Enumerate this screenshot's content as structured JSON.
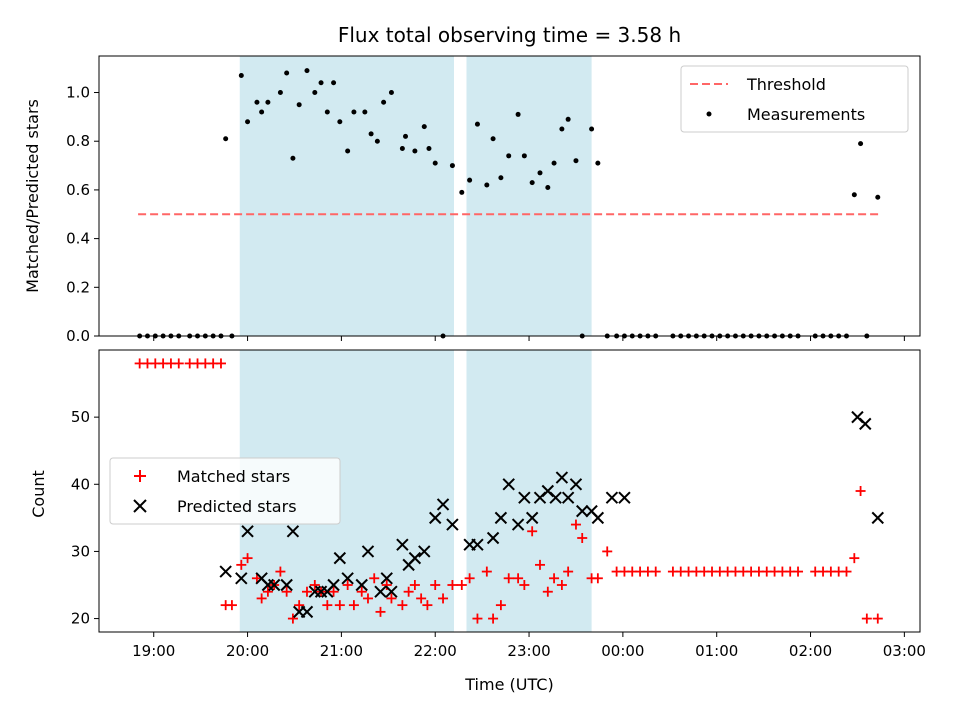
{
  "chart_data": [
    {
      "type": "scatter",
      "title": "Flux total observing time = 3.58 h",
      "xlabel": "",
      "ylabel": "Matched/Predicted stars",
      "x_unit": "hours (UTC)",
      "xlim": [
        "18:25",
        "03:10"
      ],
      "ylim": [
        0,
        1.15
      ],
      "yticks": [
        "0.0",
        "0.2",
        "0.4",
        "0.6",
        "0.8",
        "1.0"
      ],
      "xticks": [
        "19:00",
        "20:00",
        "21:00",
        "22:00",
        "23:00",
        "00:00",
        "01:00",
        "02:00",
        "03:00"
      ],
      "shaded_intervals": [
        [
          "19:55",
          "22:12"
        ],
        [
          "22:20",
          "23:40"
        ]
      ],
      "shade_color": "#add8e6",
      "legend_position": "upper right",
      "series": [
        {
          "name": "Threshold",
          "style": "dashed-line",
          "color": "#ff6666",
          "x": [
            "18:50",
            "02:45"
          ],
          "y": [
            0.5,
            0.5
          ]
        },
        {
          "name": "Measurements",
          "style": "dot",
          "color": "#000000",
          "x": [
            "18:51",
            "18:56",
            "19:01",
            "19:06",
            "19:11",
            "19:16",
            "19:23",
            "19:28",
            "19:33",
            "19:38",
            "19:43",
            "19:50",
            "19:46",
            "19:56",
            "20:00",
            "20:06",
            "20:09",
            "20:13",
            "20:21",
            "20:25",
            "20:29",
            "20:33",
            "20:38",
            "20:43",
            "20:47",
            "20:51",
            "20:55",
            "20:59",
            "21:04",
            "21:08",
            "21:15",
            "21:19",
            "21:23",
            "21:27",
            "21:32",
            "21:39",
            "21:41",
            "21:47",
            "21:53",
            "21:56",
            "22:00",
            "22:05",
            "22:11",
            "22:17",
            "22:22",
            "22:27",
            "22:33",
            "22:37",
            "22:42",
            "22:47",
            "22:53",
            "22:57",
            "23:02",
            "23:07",
            "23:12",
            "23:16",
            "23:21",
            "23:25",
            "23:30",
            "23:34",
            "23:40",
            "23:44",
            "23:50",
            "23:56",
            "00:01",
            "00:06",
            "00:11",
            "00:16",
            "00:21",
            "00:32",
            "00:37",
            "00:42",
            "00:47",
            "00:52",
            "00:57",
            "01:02",
            "01:07",
            "01:12",
            "01:17",
            "01:22",
            "01:27",
            "01:32",
            "01:37",
            "01:42",
            "01:47",
            "01:52",
            "02:03",
            "02:08",
            "02:13",
            "02:18",
            "02:23",
            "02:28",
            "02:32",
            "02:36",
            "02:43"
          ],
          "y": [
            0.0,
            0.0,
            0.0,
            0.0,
            0.0,
            0.0,
            0.0,
            0.0,
            0.0,
            0.0,
            0.0,
            0.0,
            0.81,
            1.07,
            0.88,
            0.96,
            0.92,
            0.96,
            1.0,
            1.08,
            0.73,
            0.95,
            1.09,
            1.0,
            1.04,
            0.92,
            1.04,
            0.88,
            0.76,
            0.92,
            0.92,
            0.83,
            0.8,
            0.96,
            1.0,
            0.77,
            0.82,
            0.76,
            0.86,
            0.77,
            0.71,
            0.0,
            0.7,
            0.59,
            0.64,
            0.87,
            0.62,
            0.81,
            0.65,
            0.74,
            0.91,
            0.74,
            0.63,
            0.67,
            0.61,
            0.71,
            0.85,
            0.89,
            0.72,
            0.0,
            0.85,
            0.71,
            0.0,
            0.0,
            0.0,
            0.0,
            0.0,
            0.0,
            0.0,
            0.0,
            0.0,
            0.0,
            0.0,
            0.0,
            0.0,
            0.0,
            0.0,
            0.0,
            0.0,
            0.0,
            0.0,
            0.0,
            0.0,
            0.0,
            0.0,
            0.0,
            0.0,
            0.0,
            0.0,
            0.0,
            0.0,
            0.58,
            0.79,
            0.0,
            0.57
          ]
        }
      ]
    },
    {
      "type": "scatter",
      "title": "",
      "xlabel": "Time (UTC)",
      "ylabel": "Count",
      "x_unit": "hours (UTC)",
      "xlim": [
        "18:25",
        "03:10"
      ],
      "ylim": [
        18,
        60
      ],
      "yticks": [
        "20",
        "30",
        "40",
        "50"
      ],
      "xticks": [
        "19:00",
        "20:00",
        "21:00",
        "22:00",
        "23:00",
        "00:00",
        "01:00",
        "02:00",
        "03:00"
      ],
      "shaded_intervals": [
        [
          "19:55",
          "22:12"
        ],
        [
          "22:20",
          "23:40"
        ]
      ],
      "shade_color": "#add8e6",
      "legend_position": "center left",
      "series": [
        {
          "name": "Matched stars",
          "style": "plus",
          "color": "#ff0000",
          "x": [
            "18:51",
            "18:56",
            "19:01",
            "19:06",
            "19:11",
            "19:16",
            "19:23",
            "19:28",
            "19:33",
            "19:38",
            "19:43",
            "19:46",
            "19:50",
            "19:56",
            "20:00",
            "20:06",
            "20:09",
            "20:13",
            "20:17",
            "20:21",
            "20:25",
            "20:29",
            "20:33",
            "20:38",
            "20:43",
            "20:47",
            "20:51",
            "20:55",
            "20:59",
            "21:04",
            "21:08",
            "21:13",
            "21:17",
            "21:21",
            "21:25",
            "21:29",
            "21:32",
            "21:39",
            "21:43",
            "21:47",
            "21:51",
            "21:55",
            "22:00",
            "22:05",
            "22:11",
            "22:17",
            "22:22",
            "22:27",
            "22:33",
            "22:37",
            "22:42",
            "22:47",
            "22:53",
            "22:57",
            "23:02",
            "23:07",
            "23:12",
            "23:16",
            "23:21",
            "23:25",
            "23:30",
            "23:34",
            "23:40",
            "23:44",
            "23:50",
            "23:56",
            "00:01",
            "00:06",
            "00:11",
            "00:16",
            "00:21",
            "00:32",
            "00:37",
            "00:42",
            "00:47",
            "00:52",
            "00:57",
            "01:02",
            "01:07",
            "01:12",
            "01:17",
            "01:22",
            "01:27",
            "01:32",
            "01:37",
            "01:42",
            "01:47",
            "01:52",
            "02:03",
            "02:08",
            "02:13",
            "02:18",
            "02:23",
            "02:28",
            "02:32",
            "02:36",
            "02:43"
          ],
          "y": [
            58,
            58,
            58,
            58,
            58,
            58,
            58,
            58,
            58,
            58,
            58,
            22,
            22,
            28,
            29,
            26,
            23,
            24,
            25,
            27,
            24,
            20,
            22,
            24,
            25,
            24,
            22,
            24,
            22,
            25,
            22,
            24,
            23,
            26,
            21,
            25,
            23,
            22,
            24,
            25,
            23,
            22,
            25,
            23,
            25,
            25,
            26,
            20,
            27,
            20,
            22,
            26,
            26,
            25,
            33,
            28,
            24,
            26,
            25,
            27,
            34,
            32,
            26,
            26,
            30,
            27,
            27,
            27,
            27,
            27,
            27,
            27,
            27,
            27,
            27,
            27,
            27,
            27,
            27,
            27,
            27,
            27,
            27,
            27,
            27,
            27,
            27,
            27,
            27,
            27,
            27,
            27,
            27,
            29,
            39,
            20,
            20
          ]
        },
        {
          "name": "Predicted stars",
          "style": "x",
          "color": "#000000",
          "x": [
            "19:46",
            "19:56",
            "20:00",
            "20:09",
            "20:13",
            "20:17",
            "20:25",
            "20:29",
            "20:33",
            "20:38",
            "20:43",
            "20:47",
            "20:51",
            "20:55",
            "20:59",
            "21:04",
            "21:13",
            "21:17",
            "21:25",
            "21:29",
            "21:32",
            "21:39",
            "21:43",
            "21:47",
            "21:53",
            "22:00",
            "22:05",
            "22:11",
            "22:22",
            "22:27",
            "22:37",
            "22:42",
            "22:47",
            "22:53",
            "22:57",
            "23:02",
            "23:07",
            "23:12",
            "23:17",
            "23:21",
            "23:25",
            "23:30",
            "23:34",
            "23:40",
            "23:44",
            "23:53",
            "24:01",
            "02:30",
            "02:35",
            "02:43"
          ],
          "y": [
            27,
            26,
            33,
            26,
            25,
            25,
            25,
            33,
            21,
            21,
            24,
            24,
            24,
            25,
            29,
            26,
            25,
            30,
            24,
            26,
            24,
            31,
            28,
            29,
            30,
            35,
            37,
            34,
            31,
            31,
            32,
            35,
            40,
            34,
            38,
            35,
            38,
            39,
            38,
            41,
            38,
            40,
            36,
            36,
            35,
            38,
            38,
            50,
            49,
            35
          ]
        }
      ]
    }
  ]
}
